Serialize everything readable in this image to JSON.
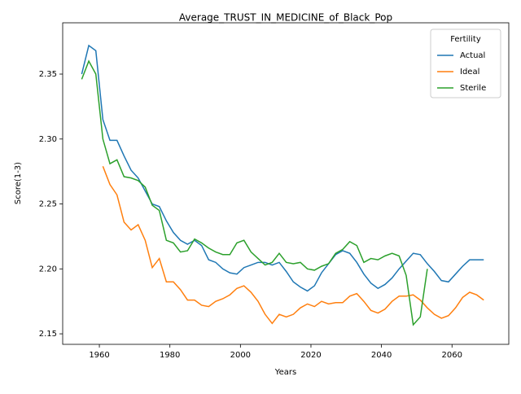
{
  "chart_data": {
    "type": "line",
    "title": "Average_TRUST_IN_MEDICINE_of_Black_Pop",
    "x_label": "Years",
    "y_label": "Score(1-3)",
    "x": [
      1955,
      1957,
      1959,
      1961,
      1963,
      1965,
      1967,
      1969,
      1971,
      1973,
      1975,
      1977,
      1979,
      1981,
      1983,
      1985,
      1987,
      1989,
      1991,
      1993,
      1995,
      1997,
      1999,
      2001,
      2003,
      2005,
      2007,
      2009,
      2011,
      2013,
      2015,
      2017,
      2019,
      2021,
      2023,
      2025,
      2027,
      2029,
      2031,
      2033,
      2035,
      2037,
      2039,
      2041,
      2043,
      2045,
      2047,
      2049,
      2051,
      2053,
      2055,
      2057,
      2059,
      2061,
      2063,
      2065,
      2067,
      2069
    ],
    "series": [
      {
        "name": "Actual",
        "color": "#1f77b4",
        "values": [
          2.35,
          2.372,
          2.368,
          2.315,
          2.299,
          2.299,
          2.287,
          2.276,
          2.27,
          2.26,
          2.25,
          2.248,
          2.237,
          2.228,
          2.222,
          2.219,
          2.222,
          2.218,
          2.207,
          2.205,
          2.2,
          2.197,
          2.196,
          2.201,
          2.203,
          2.205,
          2.205,
          2.203,
          2.205,
          2.198,
          2.19,
          2.186,
          2.183,
          2.187,
          2.197,
          2.204,
          2.211,
          2.214,
          2.212,
          2.205,
          2.196,
          2.189,
          2.185,
          2.188,
          2.193,
          2.2,
          2.206,
          2.212,
          2.211,
          2.204,
          2.198,
          2.191,
          2.19,
          2.196,
          2.202,
          2.207,
          2.207,
          2.207
        ]
      },
      {
        "name": "Ideal",
        "color": "#ff7f0e",
        "values": [
          null,
          null,
          null,
          2.279,
          2.265,
          2.257,
          2.236,
          2.23,
          2.234,
          2.222,
          2.201,
          2.208,
          2.19,
          2.19,
          2.184,
          2.176,
          2.176,
          2.172,
          2.171,
          2.175,
          2.177,
          2.18,
          2.185,
          2.187,
          2.182,
          2.175,
          2.165,
          2.158,
          2.165,
          2.163,
          2.165,
          2.17,
          2.173,
          2.171,
          2.175,
          2.173,
          2.174,
          2.174,
          2.179,
          2.181,
          2.175,
          2.168,
          2.166,
          2.169,
          2.175,
          2.179,
          2.179,
          2.18,
          2.176,
          2.17,
          2.165,
          2.162,
          2.164,
          2.17,
          2.178,
          2.182,
          2.18,
          2.176
        ]
      },
      {
        "name": "Sterile",
        "color": "#2ca02c",
        "values": [
          2.346,
          2.36,
          2.35,
          2.3,
          2.281,
          2.284,
          2.271,
          2.27,
          2.268,
          2.263,
          2.249,
          2.245,
          2.222,
          2.22,
          2.213,
          2.214,
          2.223,
          2.22,
          2.216,
          2.213,
          2.211,
          2.211,
          2.22,
          2.222,
          2.213,
          2.208,
          2.203,
          2.205,
          2.212,
          2.205,
          2.204,
          2.205,
          2.2,
          2.199,
          2.202,
          2.204,
          2.212,
          2.215,
          2.221,
          2.218,
          2.205,
          2.208,
          2.207,
          2.21,
          2.212,
          2.21,
          2.195,
          2.157,
          2.163,
          2.2,
          null,
          null,
          null,
          null,
          null,
          null,
          null,
          null
        ]
      }
    ],
    "xlim": [
      1949.6,
      2076.1
    ],
    "ylim": [
      2.1419,
      2.3895
    ],
    "xticks": [
      1960,
      1980,
      2000,
      2020,
      2040,
      2060
    ],
    "yticks": [
      2.15,
      {
        "value": 2.2,
        "label": "2.20"
      },
      2.25,
      {
        "value": 2.3,
        "label": "2.30"
      },
      2.35
    ],
    "grid": false,
    "legend_title": "Fertility",
    "legend_position": "upper right"
  }
}
